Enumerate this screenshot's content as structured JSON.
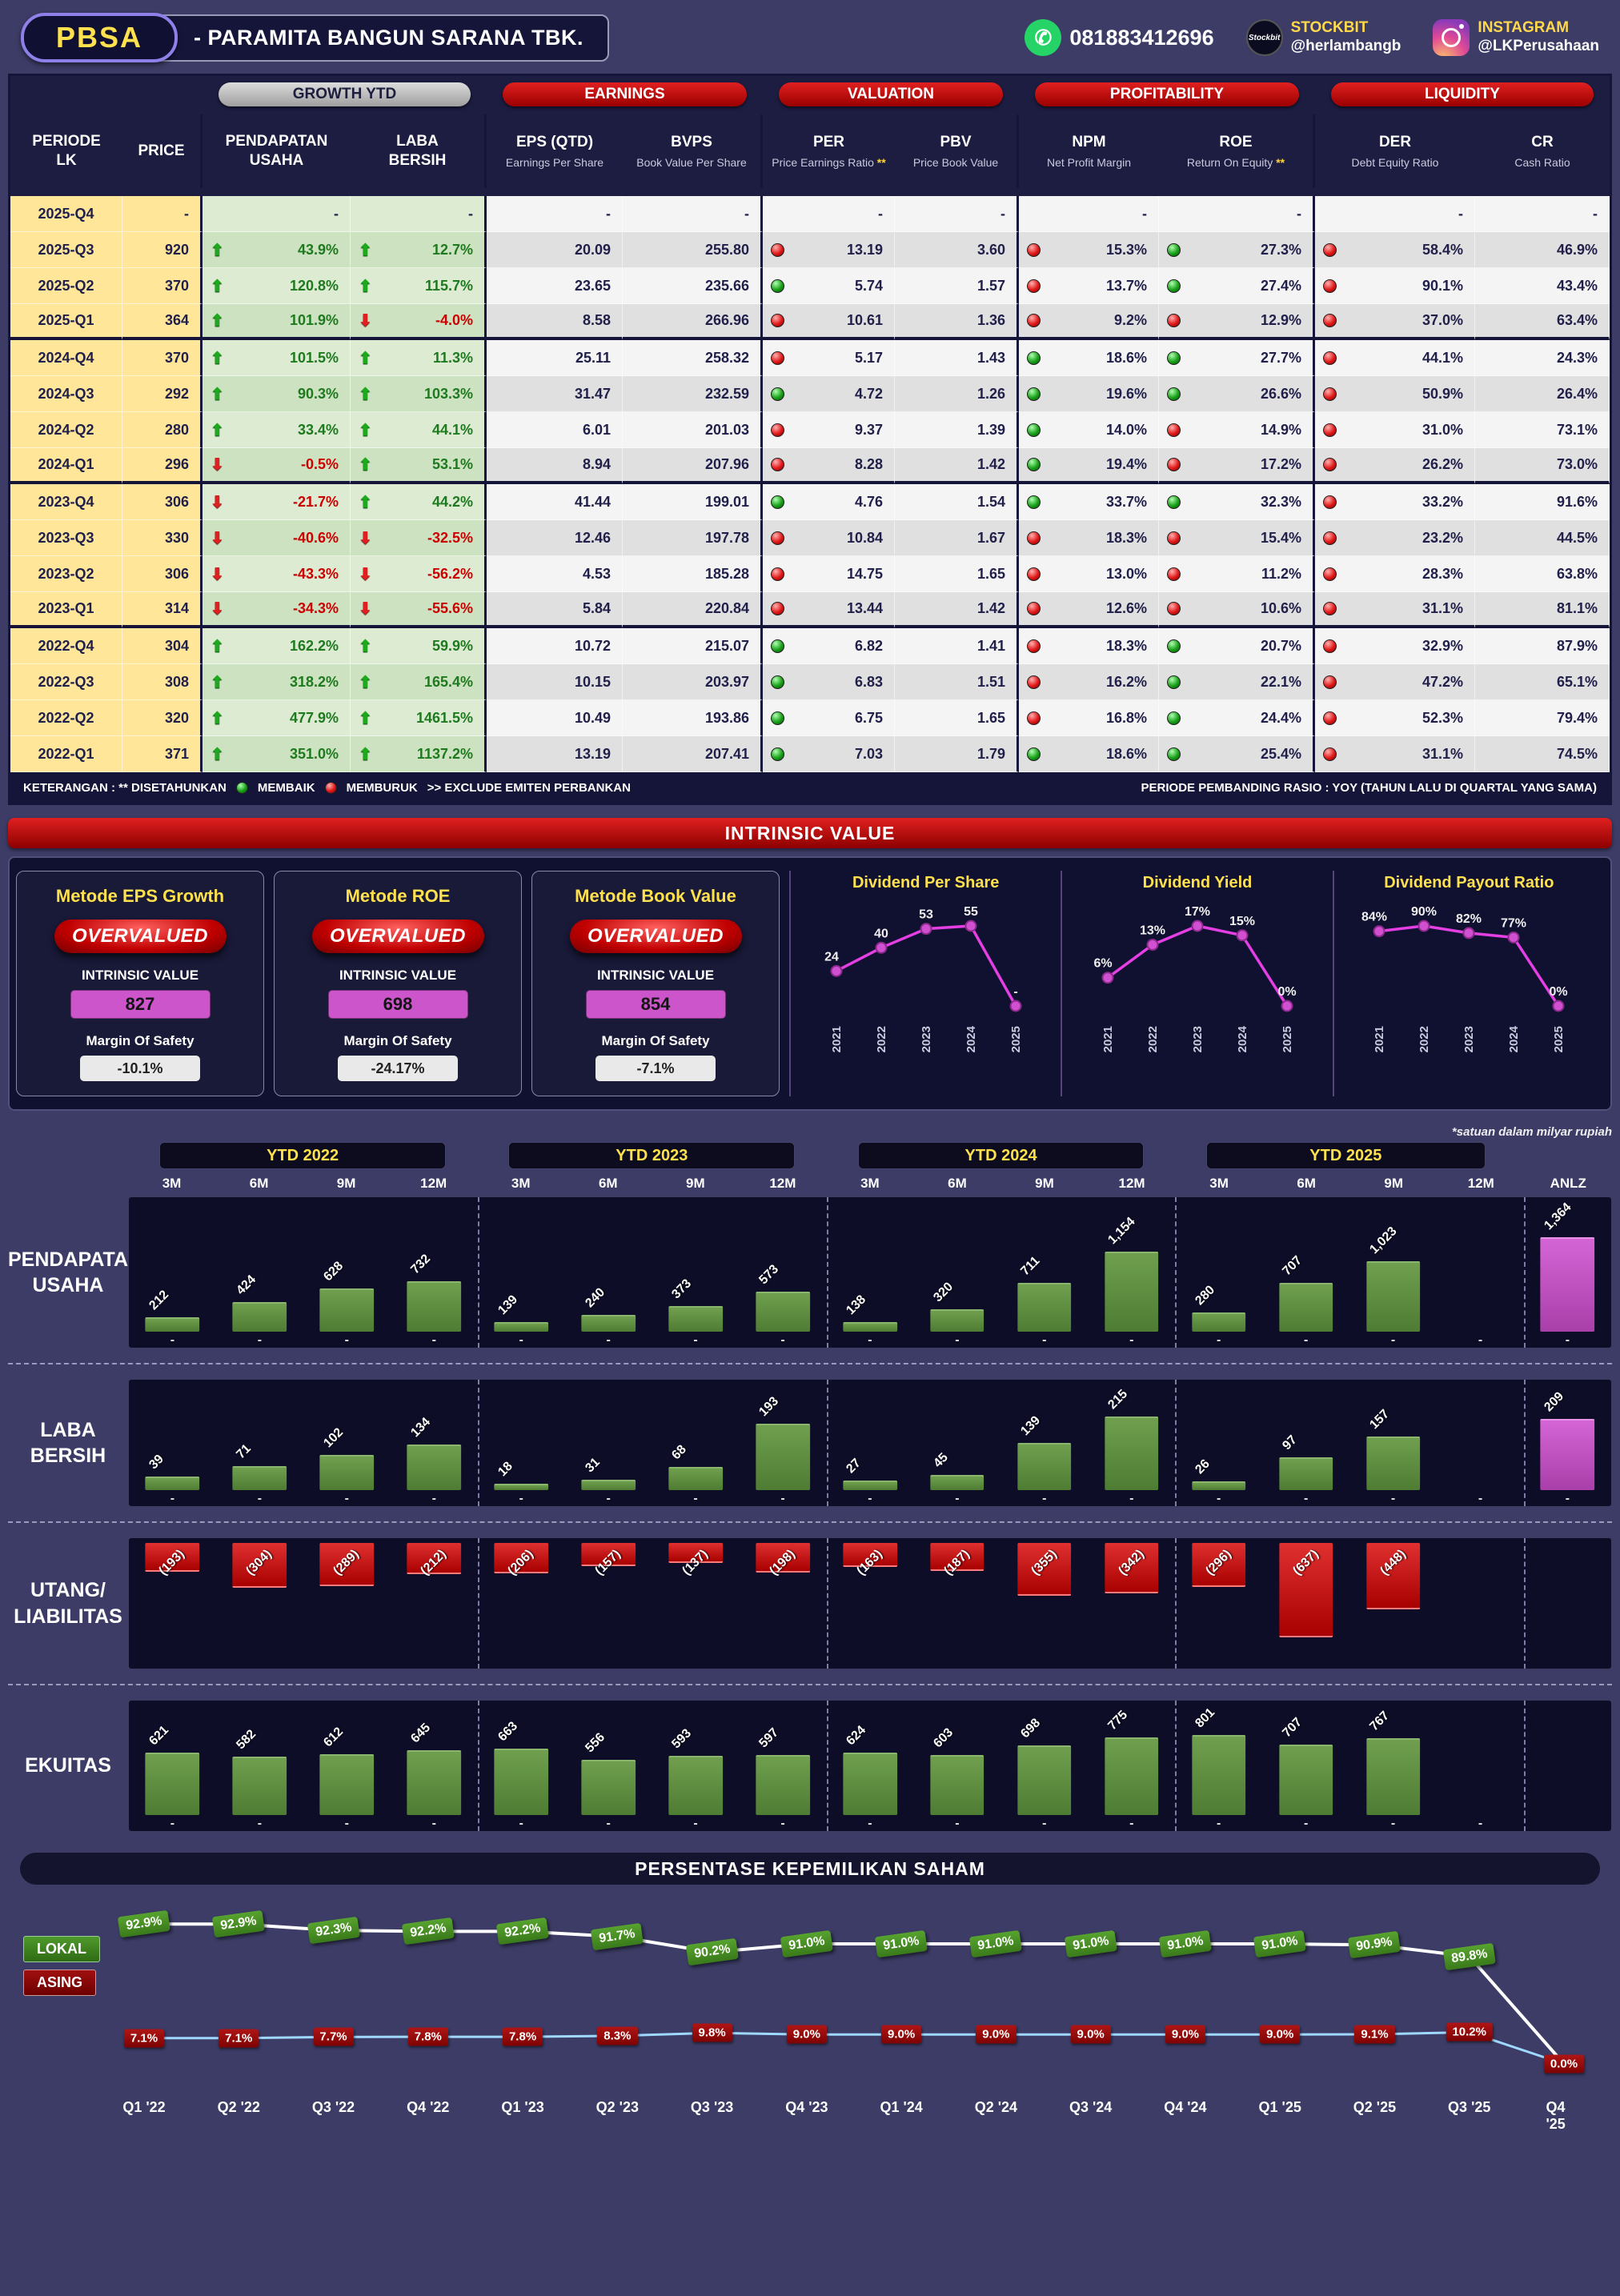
{
  "header": {
    "ticker": "PBSA",
    "company": "-  PARAMITA BANGUN SARANA TBK.",
    "whatsapp": "081883412696",
    "stockbit_label": "STOCKBIT",
    "stockbit_handle": "@herlambangb",
    "instagram_label": "INSTAGRAM",
    "instagram_handle": "@LKPerusahaan"
  },
  "table": {
    "groups": [
      "GROWTH YTD",
      "EARNINGS",
      "VALUATION",
      "PROFITABILITY",
      "LIQUIDITY"
    ],
    "columns": [
      {
        "main": "PERIODE",
        "sub": "LK"
      },
      {
        "main": "PRICE",
        "sub": ""
      },
      {
        "main": "PENDAPATAN",
        "sub": "USAHA"
      },
      {
        "main": "LABA",
        "sub": "BERSIH"
      },
      {
        "main": "EPS (QTD)",
        "sub": "Earnings Per Share"
      },
      {
        "main": "BVPS",
        "sub": "Book Value Per Share"
      },
      {
        "main": "PER",
        "sub": "Price Earnings Ratio **"
      },
      {
        "main": "PBV",
        "sub": "Price Book Value"
      },
      {
        "main": "NPM",
        "sub": "Net Profit Margin"
      },
      {
        "main": "ROE",
        "sub": "Return On Equity **"
      },
      {
        "main": "DER",
        "sub": "Debt Equity Ratio"
      },
      {
        "main": "CR",
        "sub": "Cash Ratio"
      }
    ],
    "rows": [
      {
        "period": "2025-Q4",
        "price": "-",
        "pu_dir": "",
        "pu": "-",
        "lb_dir": "",
        "lb": "-",
        "eps": "-",
        "bvps": "-",
        "per_f": "",
        "per": "-",
        "pbv": "-",
        "npm_f": "",
        "npm": "-",
        "roe_f": "",
        "roe": "-",
        "der_f": "",
        "der": "-",
        "cr": "-",
        "sep": false
      },
      {
        "period": "2025-Q3",
        "price": "920",
        "pu_dir": "up",
        "pu": "43.9%",
        "lb_dir": "up",
        "lb": "12.7%",
        "eps": "20.09",
        "bvps": "255.80",
        "per_f": "r",
        "per": "13.19",
        "pbv": "3.60",
        "npm_f": "r",
        "npm": "15.3%",
        "roe_f": "g",
        "roe": "27.3%",
        "der_f": "r",
        "der": "58.4%",
        "cr": "46.9%",
        "sep": false
      },
      {
        "period": "2025-Q2",
        "price": "370",
        "pu_dir": "up",
        "pu": "120.8%",
        "lb_dir": "up",
        "lb": "115.7%",
        "eps": "23.65",
        "bvps": "235.66",
        "per_f": "g",
        "per": "5.74",
        "pbv": "1.57",
        "npm_f": "r",
        "npm": "13.7%",
        "roe_f": "g",
        "roe": "27.4%",
        "der_f": "r",
        "der": "90.1%",
        "cr": "43.4%",
        "sep": false
      },
      {
        "period": "2025-Q1",
        "price": "364",
        "pu_dir": "up",
        "pu": "101.9%",
        "lb_dir": "down",
        "lb": "-4.0%",
        "eps": "8.58",
        "bvps": "266.96",
        "per_f": "r",
        "per": "10.61",
        "pbv": "1.36",
        "npm_f": "r",
        "npm": "9.2%",
        "roe_f": "r",
        "roe": "12.9%",
        "der_f": "r",
        "der": "37.0%",
        "cr": "63.4%",
        "sep": true
      },
      {
        "period": "2024-Q4",
        "price": "370",
        "pu_dir": "up",
        "pu": "101.5%",
        "lb_dir": "up",
        "lb": "11.3%",
        "eps": "25.11",
        "bvps": "258.32",
        "per_f": "r",
        "per": "5.17",
        "pbv": "1.43",
        "npm_f": "g",
        "npm": "18.6%",
        "roe_f": "g",
        "roe": "27.7%",
        "der_f": "r",
        "der": "44.1%",
        "cr": "24.3%",
        "sep": false
      },
      {
        "period": "2024-Q3",
        "price": "292",
        "pu_dir": "up",
        "pu": "90.3%",
        "lb_dir": "up",
        "lb": "103.3%",
        "eps": "31.47",
        "bvps": "232.59",
        "per_f": "g",
        "per": "4.72",
        "pbv": "1.26",
        "npm_f": "g",
        "npm": "19.6%",
        "roe_f": "g",
        "roe": "26.6%",
        "der_f": "r",
        "der": "50.9%",
        "cr": "26.4%",
        "sep": false
      },
      {
        "period": "2024-Q2",
        "price": "280",
        "pu_dir": "up",
        "pu": "33.4%",
        "lb_dir": "up",
        "lb": "44.1%",
        "eps": "6.01",
        "bvps": "201.03",
        "per_f": "r",
        "per": "9.37",
        "pbv": "1.39",
        "npm_f": "g",
        "npm": "14.0%",
        "roe_f": "r",
        "roe": "14.9%",
        "der_f": "r",
        "der": "31.0%",
        "cr": "73.1%",
        "sep": false
      },
      {
        "period": "2024-Q1",
        "price": "296",
        "pu_dir": "down",
        "pu": "-0.5%",
        "lb_dir": "up",
        "lb": "53.1%",
        "eps": "8.94",
        "bvps": "207.96",
        "per_f": "r",
        "per": "8.28",
        "pbv": "1.42",
        "npm_f": "g",
        "npm": "19.4%",
        "roe_f": "r",
        "roe": "17.2%",
        "der_f": "r",
        "der": "26.2%",
        "cr": "73.0%",
        "sep": true
      },
      {
        "period": "2023-Q4",
        "price": "306",
        "pu_dir": "down",
        "pu": "-21.7%",
        "lb_dir": "up",
        "lb": "44.2%",
        "eps": "41.44",
        "bvps": "199.01",
        "per_f": "g",
        "per": "4.76",
        "pbv": "1.54",
        "npm_f": "g",
        "npm": "33.7%",
        "roe_f": "g",
        "roe": "32.3%",
        "der_f": "r",
        "der": "33.2%",
        "cr": "91.6%",
        "sep": false
      },
      {
        "period": "2023-Q3",
        "price": "330",
        "pu_dir": "down",
        "pu": "-40.6%",
        "lb_dir": "down",
        "lb": "-32.5%",
        "eps": "12.46",
        "bvps": "197.78",
        "per_f": "r",
        "per": "10.84",
        "pbv": "1.67",
        "npm_f": "r",
        "npm": "18.3%",
        "roe_f": "r",
        "roe": "15.4%",
        "der_f": "r",
        "der": "23.2%",
        "cr": "44.5%",
        "sep": false
      },
      {
        "period": "2023-Q2",
        "price": "306",
        "pu_dir": "down",
        "pu": "-43.3%",
        "lb_dir": "down",
        "lb": "-56.2%",
        "eps": "4.53",
        "bvps": "185.28",
        "per_f": "r",
        "per": "14.75",
        "pbv": "1.65",
        "npm_f": "r",
        "npm": "13.0%",
        "roe_f": "r",
        "roe": "11.2%",
        "der_f": "r",
        "der": "28.3%",
        "cr": "63.8%",
        "sep": false
      },
      {
        "period": "2023-Q1",
        "price": "314",
        "pu_dir": "down",
        "pu": "-34.3%",
        "lb_dir": "down",
        "lb": "-55.6%",
        "eps": "5.84",
        "bvps": "220.84",
        "per_f": "r",
        "per": "13.44",
        "pbv": "1.42",
        "npm_f": "r",
        "npm": "12.6%",
        "roe_f": "r",
        "roe": "10.6%",
        "der_f": "r",
        "der": "31.1%",
        "cr": "81.1%",
        "sep": true
      },
      {
        "period": "2022-Q4",
        "price": "304",
        "pu_dir": "up",
        "pu": "162.2%",
        "lb_dir": "up",
        "lb": "59.9%",
        "eps": "10.72",
        "bvps": "215.07",
        "per_f": "g",
        "per": "6.82",
        "pbv": "1.41",
        "npm_f": "r",
        "npm": "18.3%",
        "roe_f": "g",
        "roe": "20.7%",
        "der_f": "r",
        "der": "32.9%",
        "cr": "87.9%",
        "sep": false
      },
      {
        "period": "2022-Q3",
        "price": "308",
        "pu_dir": "up",
        "pu": "318.2%",
        "lb_dir": "up",
        "lb": "165.4%",
        "eps": "10.15",
        "bvps": "203.97",
        "per_f": "g",
        "per": "6.83",
        "pbv": "1.51",
        "npm_f": "r",
        "npm": "16.2%",
        "roe_f": "g",
        "roe": "22.1%",
        "der_f": "r",
        "der": "47.2%",
        "cr": "65.1%",
        "sep": false
      },
      {
        "period": "2022-Q2",
        "price": "320",
        "pu_dir": "up",
        "pu": "477.9%",
        "lb_dir": "up",
        "lb": "1461.5%",
        "eps": "10.49",
        "bvps": "193.86",
        "per_f": "g",
        "per": "6.75",
        "pbv": "1.65",
        "npm_f": "r",
        "npm": "16.8%",
        "roe_f": "g",
        "roe": "24.4%",
        "der_f": "r",
        "der": "52.3%",
        "cr": "79.4%",
        "sep": false
      },
      {
        "period": "2022-Q1",
        "price": "371",
        "pu_dir": "up",
        "pu": "351.0%",
        "lb_dir": "up",
        "lb": "1137.2%",
        "eps": "13.19",
        "bvps": "207.41",
        "per_f": "g",
        "per": "7.03",
        "pbv": "1.79",
        "npm_f": "g",
        "npm": "18.6%",
        "roe_f": "g",
        "roe": "25.4%",
        "der_f": "r",
        "der": "31.1%",
        "cr": "74.5%",
        "sep": false
      }
    ]
  },
  "legend": {
    "note1": "KETERANGAN :  ** DISETAHUNKAN",
    "improve": "MEMBAIK",
    "worsen": "MEMBURUK",
    "exclude": ">> EXCLUDE EMITEN PERBANKAN",
    "period_note": "PERIODE PEMBANDING RASIO : YOY (TAHUN LALU DI QUARTAL YANG SAMA)"
  },
  "intrinsic": {
    "banner": "INTRINSIC VALUE",
    "value_label": "INTRINSIC VALUE",
    "mos_label": "Margin Of Safety",
    "methods": [
      {
        "title": "Metode EPS Growth",
        "verdict": "OVERVALUED",
        "value": "827",
        "mos": "-10.1%"
      },
      {
        "title": "Metode ROE",
        "verdict": "OVERVALUED",
        "value": "698",
        "mos": "-24.17%"
      },
      {
        "title": "Metode Book Value",
        "verdict": "OVERVALUED",
        "value": "854",
        "mos": "-7.1%"
      }
    ]
  },
  "bar_section": {
    "note": "*satuan dalam milyar rupiah",
    "group_headers": [
      "YTD 2022",
      "YTD 2023",
      "YTD 2024",
      "YTD 2025"
    ],
    "col_labels": [
      "3M",
      "6M",
      "9M",
      "12M",
      "3M",
      "6M",
      "9M",
      "12M",
      "3M",
      "6M",
      "9M",
      "12M",
      "3M",
      "6M",
      "9M",
      "12M",
      "ANLZ"
    ],
    "rows": [
      {
        "chart": "pendapatan",
        "label_lines": [
          "PENDAPATAN",
          "USAHA"
        ]
      },
      {
        "chart": "laba",
        "label_lines": [
          "LABA",
          "BERSIH"
        ]
      },
      {
        "chart": "utang",
        "label_lines": [
          "UTANG/",
          "LIABILITAS"
        ]
      },
      {
        "chart": "ekuitas",
        "label_lines": [
          "EKUITAS"
        ]
      }
    ]
  },
  "ownership": {
    "title": "PERSENTASE KEPEMILIKAN SAHAM",
    "legend_lokal": "LOKAL",
    "legend_asing": "ASING"
  },
  "chart_data": [
    {
      "id": "dps",
      "type": "line",
      "title": "Dividend Per Share",
      "x": [
        "2021",
        "2022",
        "2023",
        "2024",
        "2025"
      ],
      "values": [
        24,
        40,
        53,
        55,
        null
      ],
      "labels": [
        "24",
        "40",
        "53",
        "55",
        "-"
      ]
    },
    {
      "id": "dyield",
      "type": "line",
      "title": "Dividend Yield",
      "x": [
        "2021",
        "2022",
        "2023",
        "2024",
        "2025"
      ],
      "values": [
        6,
        13,
        17,
        15,
        0
      ],
      "labels": [
        "6%",
        "13%",
        "17%",
        "15%",
        "0%"
      ]
    },
    {
      "id": "dpayout",
      "type": "line",
      "title": "Dividend Payout Ratio",
      "x": [
        "2021",
        "2022",
        "2023",
        "2024",
        "2025"
      ],
      "values": [
        84,
        90,
        82,
        77,
        0
      ],
      "labels": [
        "84%",
        "90%",
        "82%",
        "77%",
        "0%"
      ]
    },
    {
      "id": "pendapatan",
      "type": "bar",
      "title": "PENDAPATAN USAHA",
      "unit": "milyar rupiah",
      "categories": [
        "2022-3M",
        "2022-6M",
        "2022-9M",
        "2022-12M",
        "2023-3M",
        "2023-6M",
        "2023-9M",
        "2023-12M",
        "2024-3M",
        "2024-6M",
        "2024-9M",
        "2024-12M",
        "2025-3M",
        "2025-6M",
        "2025-9M",
        "2025-12M",
        "ANLZ"
      ],
      "values": [
        212,
        424,
        628,
        732,
        139,
        240,
        373,
        573,
        138,
        320,
        711,
        1154,
        280,
        707,
        1023,
        null,
        1364
      ],
      "labels": [
        "212",
        "424",
        "628",
        "732",
        "139",
        "240",
        "373",
        "573",
        "138",
        "320",
        "711",
        "1,154",
        "280",
        "707",
        "1,023",
        "-",
        "1,364"
      ]
    },
    {
      "id": "laba",
      "type": "bar",
      "title": "LABA BERSIH",
      "unit": "milyar rupiah",
      "categories": [
        "2022-3M",
        "2022-6M",
        "2022-9M",
        "2022-12M",
        "2023-3M",
        "2023-6M",
        "2023-9M",
        "2023-12M",
        "2024-3M",
        "2024-6M",
        "2024-9M",
        "2024-12M",
        "2025-3M",
        "2025-6M",
        "2025-9M",
        "2025-12M",
        "ANLZ"
      ],
      "values": [
        39,
        71,
        102,
        134,
        18,
        31,
        68,
        193,
        27,
        45,
        139,
        215,
        26,
        97,
        157,
        null,
        209
      ],
      "labels": [
        "39",
        "71",
        "102",
        "134",
        "18",
        "31",
        "68",
        "193",
        "27",
        "45",
        "139",
        "215",
        "26",
        "97",
        "157",
        "-",
        "209"
      ]
    },
    {
      "id": "utang",
      "type": "bar",
      "title": "UTANG/LIABILITAS",
      "unit": "milyar rupiah",
      "categories": [
        "2022-3M",
        "2022-6M",
        "2022-9M",
        "2022-12M",
        "2023-3M",
        "2023-6M",
        "2023-9M",
        "2023-12M",
        "2024-3M",
        "2024-6M",
        "2024-9M",
        "2024-12M",
        "2025-3M",
        "2025-6M",
        "2025-9M",
        "2025-12M",
        "ANLZ"
      ],
      "values": [
        -193,
        -304,
        -289,
        -212,
        -206,
        -157,
        -137,
        -198,
        -163,
        -187,
        -355,
        -342,
        -296,
        -637,
        -448,
        null,
        null
      ],
      "labels": [
        "(193)",
        "(304)",
        "(289)",
        "(212)",
        "(206)",
        "(157)",
        "(137)",
        "(198)",
        "(163)",
        "(187)",
        "(355)",
        "(342)",
        "(296)",
        "(637)",
        "(448)",
        null,
        null
      ]
    },
    {
      "id": "ekuitas",
      "type": "bar",
      "title": "EKUITAS",
      "unit": "milyar rupiah",
      "categories": [
        "2022-3M",
        "2022-6M",
        "2022-9M",
        "2022-12M",
        "2023-3M",
        "2023-6M",
        "2023-9M",
        "2023-12M",
        "2024-3M",
        "2024-6M",
        "2024-9M",
        "2024-12M",
        "2025-3M",
        "2025-6M",
        "2025-9M",
        "2025-12M",
        "ANLZ"
      ],
      "values": [
        621,
        582,
        612,
        645,
        663,
        556,
        593,
        597,
        624,
        603,
        698,
        775,
        801,
        707,
        767,
        null,
        null
      ],
      "labels": [
        "621",
        "582",
        "612",
        "645",
        "663",
        "556",
        "593",
        "597",
        "624",
        "603",
        "698",
        "775",
        "801",
        "707",
        "767",
        "-",
        null
      ]
    },
    {
      "id": "ownership",
      "type": "line",
      "title": "PERSENTASE KEPEMILIKAN SAHAM",
      "x": [
        "Q1 '22",
        "Q2 '22",
        "Q3 '22",
        "Q4 '22",
        "Q1 '23",
        "Q2 '23",
        "Q3 '23",
        "Q4 '23",
        "Q1 '24",
        "Q2 '24",
        "Q3 '24",
        "Q4 '24",
        "Q1 '25",
        "Q2 '25",
        "Q3 '25",
        "Q4 '25"
      ],
      "series": [
        {
          "name": "LOKAL",
          "values": [
            92.9,
            92.9,
            92.3,
            92.2,
            92.2,
            91.7,
            90.2,
            91.0,
            91.0,
            91.0,
            91.0,
            91.0,
            91.0,
            90.9,
            89.8,
            null
          ],
          "labels": [
            "92.9%",
            "92.9%",
            "92.3%",
            "92.2%",
            "92.2%",
            "91.7%",
            "90.2%",
            "91.0%",
            "91.0%",
            "91.0%",
            "91.0%",
            "91.0%",
            "91.0%",
            "90.9%",
            "89.8%"
          ]
        },
        {
          "name": "ASING",
          "values": [
            7.1,
            7.1,
            7.7,
            7.8,
            7.8,
            8.3,
            9.8,
            9.0,
            9.0,
            9.0,
            9.0,
            9.0,
            9.0,
            9.1,
            10.2,
            0.0
          ],
          "labels": [
            "7.1%",
            "7.1%",
            "7.7%",
            "7.8%",
            "7.8%",
            "8.3%",
            "9.8%",
            "9.0%",
            "9.0%",
            "9.0%",
            "9.0%",
            "9.0%",
            "9.0%",
            "9.1%",
            "10.2%",
            "0.0%"
          ]
        }
      ]
    }
  ]
}
